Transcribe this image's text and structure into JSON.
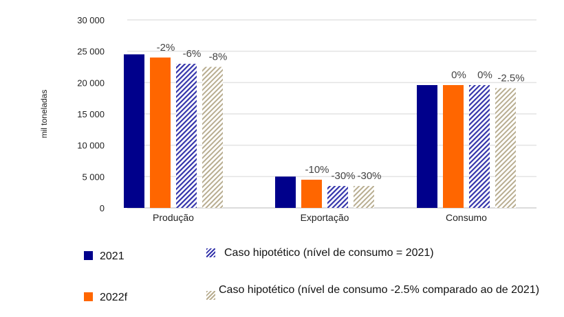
{
  "chart_data": {
    "type": "bar",
    "title": "",
    "xlabel": "",
    "ylabel": "mil toneladas",
    "ylim": [
      0,
      30000
    ],
    "yticks": [
      0,
      5000,
      10000,
      15000,
      20000,
      25000,
      30000
    ],
    "ytick_labels": [
      "0",
      "5 000",
      "10 000",
      "15 000",
      "20 000",
      "25 000",
      "30 000"
    ],
    "grid": true,
    "legend_position": "bottom",
    "categories": [
      "Produção",
      "Exportação",
      "Consumo"
    ],
    "series": [
      {
        "name": "2021",
        "values": [
          24500,
          5000,
          19600
        ],
        "color": "#00008B",
        "pattern": "solid",
        "labels": [
          "",
          "",
          ""
        ]
      },
      {
        "name": "2022f",
        "values": [
          24000,
          4500,
          19600
        ],
        "color": "#FF6600",
        "pattern": "solid",
        "labels": [
          "-2%",
          "-10%",
          "0%"
        ]
      },
      {
        "name": "Caso hipotético (nível de consumo = 2021)",
        "values": [
          23000,
          3500,
          19600
        ],
        "color": "#3333AA",
        "pattern": "hatch",
        "labels": [
          "-6%",
          "-30%",
          "0%"
        ]
      },
      {
        "name": "Caso hipotético (nível de consumo -2.5% comparado ao de 2021)",
        "values": [
          22500,
          3500,
          19100
        ],
        "color": "#B8AD90",
        "pattern": "hatch",
        "labels": [
          "-8%",
          "-30%",
          "-2.5%"
        ]
      }
    ]
  }
}
